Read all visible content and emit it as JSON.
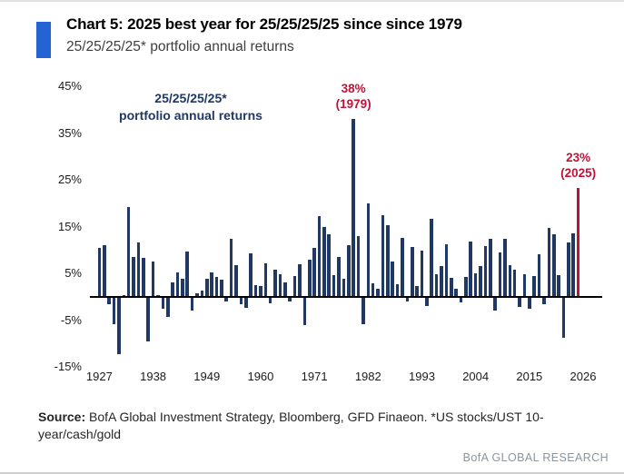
{
  "header": {
    "title": "Chart 5: 2025 best year for 25/25/25/25 since since 1979",
    "subtitle": "25/25/25/25* portfolio annual returns",
    "accent_color": "#2364d2"
  },
  "chart_data": {
    "type": "bar",
    "title": "25/25/25/25* portfolio annual returns",
    "inner_label": {
      "line1": "25/25/25/25*",
      "line2": "portfolio annual returns"
    },
    "year_start": 1927,
    "year_end": 2025,
    "values": [
      10.4,
      11.0,
      -1.5,
      -5.8,
      -12.2,
      0.4,
      19.2,
      8.5,
      11.7,
      8.4,
      -9.5,
      7.5,
      0.3,
      -2.6,
      -4.2,
      3.2,
      5.2,
      3.8,
      9.7,
      -3.0,
      0.8,
      1.4,
      3.9,
      5.2,
      4.3,
      3.7,
      -1.0,
      12.4,
      6.8,
      -1.6,
      -2.3,
      9.4,
      2.6,
      2.3,
      7.1,
      -1.3,
      5.8,
      4.9,
      3.1,
      -1.0,
      4.5,
      7.0,
      -6.0,
      8.0,
      10.4,
      17.2,
      15.0,
      13.4,
      4.6,
      8.5,
      3.9,
      11.0,
      38.0,
      13.0,
      -5.8,
      20.0,
      3.0,
      1.7,
      17.5,
      15.3,
      7.6,
      2.7,
      12.6,
      -1.0,
      10.7,
      2.3,
      9.9,
      -1.9,
      16.7,
      4.9,
      6.6,
      11.2,
      4.0,
      1.7,
      -1.2,
      4.3,
      11.8,
      5.0,
      6.6,
      10.8,
      12.4,
      -2.9,
      9.5,
      12.4,
      6.8,
      5.8,
      -2.2,
      4.9,
      -2.5,
      4.4,
      9.1,
      -1.6,
      14.8,
      13.4,
      4.7,
      -8.7,
      11.6,
      13.6,
      23.3
    ],
    "highlight_year": 2025,
    "bar_color": "#1f3864",
    "highlight_color": "#c11236",
    "ylim": [
      -15,
      45
    ],
    "yticks": [
      45,
      35,
      25,
      15,
      5,
      -5,
      -15
    ],
    "ytick_labels": [
      "45%",
      "35%",
      "25%",
      "15%",
      "5%",
      "-5%",
      "-15%"
    ],
    "xticks": [
      1927,
      1938,
      1949,
      1960,
      1971,
      1982,
      1993,
      2004,
      2015,
      2026
    ],
    "annotations": [
      {
        "line1": "38%",
        "line2": "(1979)",
        "year": 1979,
        "color": "#c11236"
      },
      {
        "line1": "23%",
        "line2": "(2025)",
        "year": 2025,
        "color": "#c11236"
      }
    ],
    "grid": false,
    "legend": "none"
  },
  "footer": {
    "source_label": "Source:",
    "source_line1": " BofA Global Investment Strategy, Bloomberg, GFD Finaeon. *US stocks/UST 10-",
    "source_line2": "year/cash/gold",
    "brand": "BofA GLOBAL RESEARCH"
  }
}
